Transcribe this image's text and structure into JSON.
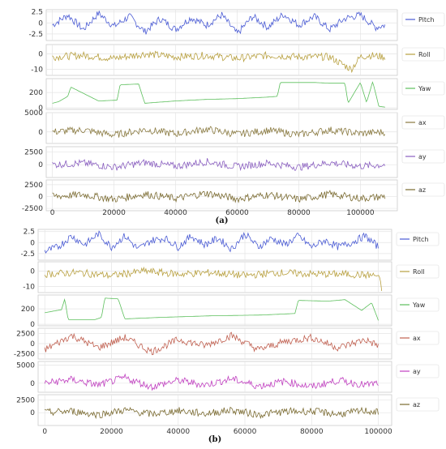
{
  "chart_data": [
    {
      "type": "line",
      "panel_caption": "(a)",
      "x_ticks": [
        0,
        20000,
        40000,
        60000,
        80000,
        100000
      ],
      "xlim": [
        -2000,
        112000
      ],
      "grid": true,
      "legend_placement": "right",
      "subplots": [
        {
          "name": "Pitch",
          "color": "#4a5bd4",
          "ylim": [
            -4,
            3
          ],
          "yticks": [
            2.5,
            0.0,
            -2.5
          ],
          "x": [
            0,
            5000,
            10000,
            15000,
            20000,
            25000,
            30000,
            35000,
            40000,
            45000,
            50000,
            55000,
            60000,
            65000,
            70000,
            75000,
            80000,
            85000,
            90000,
            95000,
            100000,
            105000,
            108000
          ],
          "y": [
            -0.5,
            1.8,
            -1.5,
            2.2,
            -0.8,
            1.5,
            -2.0,
            1.0,
            -1.5,
            1.2,
            -0.5,
            1.8,
            -2.5,
            1.5,
            -1.0,
            2.0,
            -0.5,
            1.5,
            -1.5,
            1.0,
            1.8,
            -1.0,
            -0.5
          ]
        },
        {
          "name": "Roll",
          "color": "#b8a040",
          "ylim": [
            -14,
            6
          ],
          "yticks": [
            0,
            -10
          ],
          "x": [
            0,
            10000,
            20000,
            30000,
            40000,
            50000,
            60000,
            70000,
            80000,
            90000,
            97000,
            100000,
            103000,
            108000
          ],
          "y": [
            -2,
            -1,
            -3,
            0,
            -2,
            -1,
            -3,
            -1,
            -2,
            -2,
            -10,
            -2,
            -1,
            -2
          ]
        },
        {
          "name": "Yaw",
          "color": "#5cbf5c",
          "ylim": [
            -20,
            380
          ],
          "yticks": [
            200,
            0
          ],
          "x": [
            0,
            2000,
            5000,
            6000,
            15000,
            21000,
            22000,
            28000,
            30000,
            40000,
            50000,
            60000,
            70000,
            73000,
            74000,
            85000,
            90000,
            95000,
            96000,
            100000,
            102000,
            104000,
            106000,
            108000
          ],
          "y": [
            60,
            80,
            150,
            270,
            90,
            100,
            300,
            310,
            60,
            90,
            110,
            120,
            140,
            150,
            330,
            330,
            320,
            320,
            60,
            330,
            70,
            340,
            20,
            10
          ]
        },
        {
          "name": "ax",
          "color": "#8a7a40",
          "ylim": [
            -3000,
            5000
          ],
          "yticks": [
            5000,
            0
          ],
          "x": [
            0,
            10000,
            20000,
            30000,
            40000,
            50000,
            60000,
            70000,
            80000,
            90000,
            100000,
            108000
          ],
          "y": [
            0,
            500,
            -800,
            600,
            -500,
            700,
            -600,
            400,
            -700,
            500,
            -400,
            0
          ]
        },
        {
          "name": "ay",
          "color": "#8a5fc0",
          "ylim": [
            -2500,
            3500
          ],
          "yticks": [
            2500,
            0
          ],
          "x": [
            0,
            10000,
            20000,
            30000,
            40000,
            50000,
            60000,
            70000,
            80000,
            90000,
            100000,
            108000
          ],
          "y": [
            0,
            300,
            -500,
            400,
            -300,
            600,
            -400,
            300,
            -500,
            400,
            -300,
            0
          ]
        },
        {
          "name": "az",
          "color": "#7a6a30",
          "ylim": [
            -3000,
            3500
          ],
          "yticks": [
            2500,
            0,
            -2500
          ],
          "x": [
            0,
            10000,
            20000,
            30000,
            40000,
            50000,
            60000,
            70000,
            80000,
            90000,
            100000,
            108000
          ],
          "y": [
            0,
            400,
            -600,
            500,
            -400,
            700,
            -500,
            400,
            -600,
            500,
            -400,
            0
          ]
        }
      ]
    },
    {
      "type": "line",
      "panel_caption": "(b)",
      "x_ticks": [
        0,
        20000,
        40000,
        60000,
        80000,
        100000
      ],
      "xlim": [
        -2000,
        104000
      ],
      "grid": true,
      "legend_placement": "right",
      "subplots": [
        {
          "name": "Pitch",
          "color": "#4a5bd4",
          "ylim": [
            -4,
            3
          ],
          "yticks": [
            2.5,
            0.0,
            -2.5
          ],
          "x": [
            0,
            4000,
            8000,
            12000,
            16000,
            20000,
            24000,
            28000,
            32000,
            36000,
            40000,
            44000,
            48000,
            52000,
            56000,
            60000,
            64000,
            68000,
            72000,
            76000,
            80000,
            84000,
            88000,
            92000,
            96000,
            100000
          ],
          "y": [
            -2,
            -1,
            1.5,
            -0.5,
            2.0,
            -1.0,
            1.5,
            -1.5,
            0.5,
            1.0,
            -1.0,
            1.5,
            -0.5,
            1.0,
            -1.5,
            2.0,
            -1.0,
            1.0,
            -0.5,
            1.5,
            -1.0,
            0.5,
            -1.0,
            0.0,
            1.5,
            -1.0
          ]
        },
        {
          "name": "Roll",
          "color": "#b8a040",
          "ylim": [
            -14,
            6
          ],
          "yticks": [
            0,
            -10
          ],
          "x": [
            0,
            10000,
            20000,
            30000,
            40000,
            50000,
            60000,
            70000,
            80000,
            90000,
            100000,
            101000
          ],
          "y": [
            -2,
            -1,
            -3,
            0,
            -2,
            -1,
            -3,
            -1,
            -2,
            -2,
            -3,
            -12
          ]
        },
        {
          "name": "Yaw",
          "color": "#5cbf5c",
          "ylim": [
            -20,
            380
          ],
          "yticks": [
            200,
            0
          ],
          "x": [
            0,
            5000,
            6000,
            7000,
            15000,
            17000,
            18000,
            22000,
            24000,
            35000,
            50000,
            65000,
            75000,
            76000,
            85000,
            90000,
            95000,
            98000,
            100000
          ],
          "y": [
            150,
            190,
            330,
            60,
            60,
            90,
            340,
            330,
            70,
            90,
            110,
            120,
            140,
            310,
            300,
            320,
            180,
            280,
            50
          ]
        },
        {
          "name": "ax",
          "color": "#c06050",
          "ylim": [
            -3800,
            3800
          ],
          "yticks": [
            2500,
            0,
            -2500
          ],
          "x": [
            0,
            8000,
            16000,
            24000,
            32000,
            40000,
            48000,
            56000,
            64000,
            72000,
            80000,
            88000,
            96000,
            100000
          ],
          "y": [
            -1500,
            2000,
            -1000,
            1500,
            -2000,
            1000,
            -500,
            2000,
            -1500,
            500,
            1500,
            -1000,
            1000,
            -500
          ]
        },
        {
          "name": "ay",
          "color": "#c040c0",
          "ylim": [
            -2500,
            6000
          ],
          "yticks": [
            5000,
            0
          ],
          "x": [
            0,
            8000,
            16000,
            24000,
            32000,
            40000,
            48000,
            56000,
            64000,
            72000,
            80000,
            88000,
            96000,
            100000
          ],
          "y": [
            0,
            1000,
            -500,
            1500,
            -1000,
            800,
            -500,
            1200,
            -800,
            500,
            -1000,
            800,
            -500,
            0
          ]
        },
        {
          "name": "az",
          "color": "#7a6a30",
          "ylim": [
            -2500,
            3500
          ],
          "yticks": [
            2500,
            0
          ],
          "x": [
            0,
            8000,
            16000,
            24000,
            32000,
            40000,
            48000,
            56000,
            64000,
            72000,
            80000,
            88000,
            96000,
            100000
          ],
          "y": [
            0,
            300,
            -400,
            500,
            -300,
            400,
            -200,
            500,
            -400,
            200,
            300,
            -300,
            400,
            0
          ]
        }
      ]
    }
  ]
}
